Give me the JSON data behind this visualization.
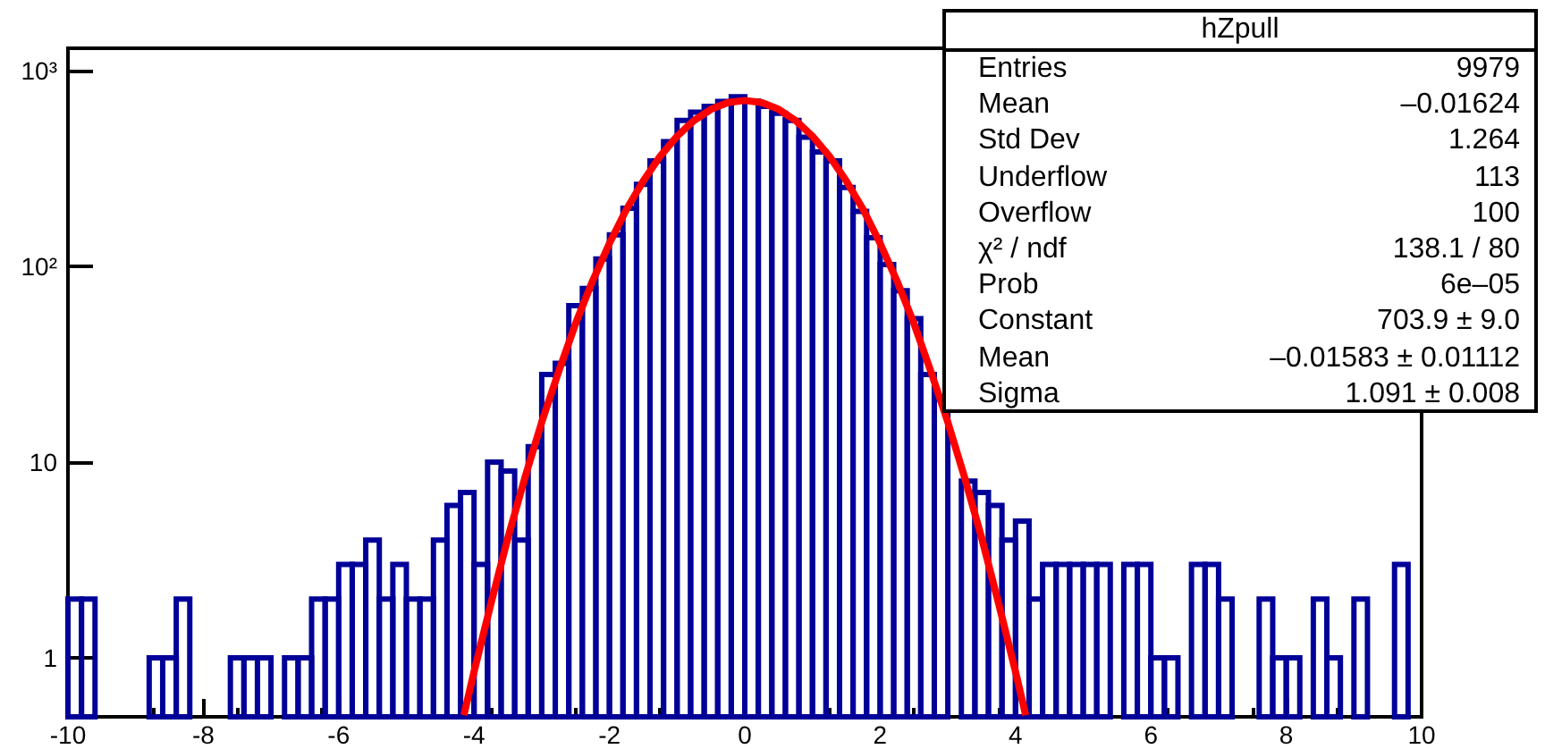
{
  "chart_data": {
    "type": "histogram",
    "log": "y",
    "xlim": [
      -10,
      10
    ],
    "ylim": [
      0.5,
      1300
    ],
    "xticks": [
      -10,
      -8,
      -6,
      -4,
      -2,
      0,
      2,
      4,
      6,
      8,
      10
    ],
    "yticks": [
      1,
      10,
      {
        "value": 100,
        "label": "10²"
      },
      {
        "value": 1000,
        "label": "10³"
      }
    ],
    "series": [
      {
        "color": "#000099",
        "bins": [
          -10,
          -9.8,
          -9.6,
          -9.4,
          -9.2,
          -9,
          -8.8,
          -8.6,
          -8.4,
          -8.2,
          -8,
          -7.8,
          -7.6,
          -7.4,
          -7.2,
          -7,
          -6.8,
          -6.6,
          -6.4,
          -6.2,
          -6,
          -5.8,
          -5.6,
          -5.4,
          -5.2,
          -5,
          -4.8,
          -4.6,
          -4.4,
          -4.2,
          -4,
          -3.8,
          -3.6,
          -3.4,
          -3.2,
          -3,
          -2.8,
          -2.6,
          -2.4,
          -2.2,
          -2,
          -1.8,
          -1.6,
          -1.4,
          -1.2,
          -1,
          -0.8,
          -0.6,
          -0.4,
          -0.2,
          0,
          0.2,
          0.4,
          0.6,
          0.8,
          1,
          1.2,
          1.4,
          1.6,
          1.8,
          2,
          2.2,
          2.4,
          2.6,
          2.8,
          3,
          3.2,
          3.4,
          3.6,
          3.8,
          4,
          4.2,
          4.4,
          4.6,
          4.8,
          5,
          5.2,
          5.4,
          5.6,
          5.8,
          6,
          6.2,
          6.4,
          6.6,
          6.8,
          7,
          7.2,
          7.4,
          7.6,
          7.8,
          8,
          8.2,
          8.4,
          8.6,
          8.8,
          9,
          9.2,
          9.4,
          9.6,
          9.8,
          10
        ],
        "values": [
          2,
          2,
          null,
          null,
          null,
          null,
          1,
          1,
          2,
          null,
          null,
          null,
          1,
          1,
          1,
          null,
          1,
          1,
          2,
          2,
          3,
          3,
          4,
          2,
          3,
          2,
          2,
          4,
          6,
          7,
          3,
          10,
          9,
          4,
          12,
          28,
          32,
          63,
          77,
          109,
          145,
          198,
          262,
          346,
          433,
          556,
          613,
          657,
          695,
          735,
          700,
          657,
          605,
          556,
          457,
          384,
          346,
          253,
          191,
          140,
          102,
          75,
          54,
          28,
          21,
          null,
          8,
          7,
          6,
          4,
          5,
          2,
          3,
          3,
          3,
          3,
          3,
          null,
          3,
          3,
          1,
          1,
          null,
          3,
          3,
          2,
          null,
          null,
          2,
          1,
          1,
          null,
          2,
          1,
          null,
          2,
          null,
          null,
          3,
          null
        ]
      },
      {
        "type": "line",
        "color": "#ff0000",
        "marker": "none",
        "x": [
          -4.15,
          -4,
          -3.75,
          -3.5,
          -3.25,
          -3,
          -2.75,
          -2.5,
          -2.25,
          -2,
          -1.75,
          -1.5,
          -1.25,
          -1,
          -0.75,
          -0.5,
          -0.25,
          0,
          0.25,
          0.5,
          0.75,
          1,
          1.25,
          1.5,
          1.75,
          2,
          2.25,
          2.5,
          2.75,
          3,
          3.25,
          3.5,
          3.75,
          4,
          4.15
        ],
        "values": [
          0.51,
          0.85,
          1.9,
          4.1,
          8.3,
          16,
          29,
          51,
          84,
          131,
          195,
          273,
          365,
          462,
          556,
          634,
          686,
          704,
          686,
          634,
          556,
          462,
          365,
          273,
          195,
          131,
          84,
          51,
          29,
          16,
          8.3,
          4.1,
          1.9,
          0.85,
          0.51
        ]
      }
    ],
    "annotations": [
      "hZpull",
      "Entries",
      "9979",
      "Mean",
      "–0.01624",
      "Std Dev",
      "1.264",
      "Underflow",
      "113",
      "Overflow",
      "100",
      "χ² / ndf",
      "138.1 / 80",
      "Prob",
      "6e–05",
      "Constant",
      "703.9 ± 9.0",
      "Mean",
      "–0.01583 ± 0.01112",
      "Sigma",
      "1.091 ± 0.008"
    ]
  }
}
